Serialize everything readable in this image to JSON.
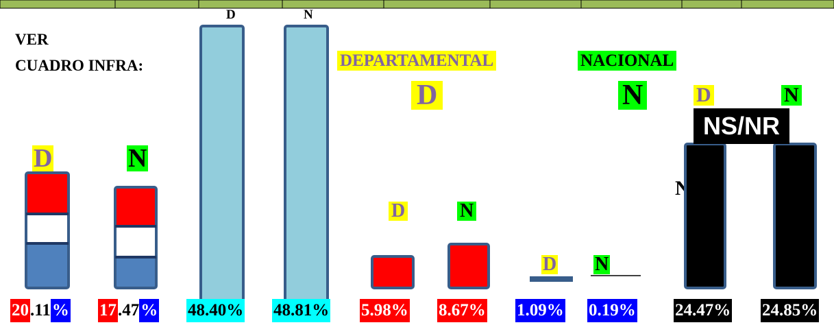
{
  "note": [
    "VER",
    "CUADRO INFRA:"
  ],
  "legend": [
    "DEPARTAMENTAL",
    "NACIONAL",
    "NS/NR"
  ],
  "tags": [
    "D",
    "N",
    "D",
    "N",
    "D",
    "N",
    "D",
    "N",
    "D",
    "N",
    "D",
    "N",
    "N"
  ],
  "percents": [
    [
      "20",
      ".11",
      "%"
    ],
    [
      "17",
      ".47",
      "%"
    ],
    "48.40%",
    "48.81%",
    "5.98%",
    "8.67%",
    "1.09%",
    "0.19%",
    "24.47%",
    "24.85%"
  ]
}
